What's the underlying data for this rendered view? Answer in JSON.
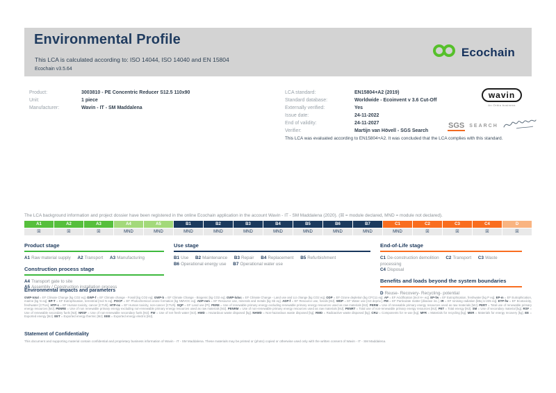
{
  "header": {
    "title": "Environmental Profile",
    "subtitle": "This LCA is calculated according to: ISO 14044, ISO 14040 and EN 15804",
    "version": "Ecochain v3.5.64",
    "logo_word": "Ecochain"
  },
  "product_info": {
    "rows": [
      {
        "label": "Product:",
        "value": "3003810 - PE Concentric Reducer S12.5 110x90"
      },
      {
        "label": "Unit:",
        "value": "1 piece"
      },
      {
        "label": "Manufacturer:",
        "value": "Wavin - IT - SM Maddalena"
      }
    ]
  },
  "lca_info": {
    "rows": [
      {
        "label": "LCA standard:",
        "value": "EN15804+A2 (2019)"
      },
      {
        "label": "Standard database:",
        "value": "Worldwide - Ecoinvent v 3.6 Cut-Off"
      },
      {
        "label": "Externally verified:",
        "value": "Yes"
      },
      {
        "label": "Issue date:",
        "value": "24-11-2022"
      },
      {
        "label": "End of validity:",
        "value": "24-11-2027"
      },
      {
        "label": "Verifier:",
        "value": "Martijn van Hövell - SGS Search"
      }
    ],
    "evaluation_note": "This LCA was evaluated according to EN15804+A2. It was concluded that the LCA complies with this standard."
  },
  "logos": {
    "wavin_word": "wavin",
    "wavin_tagline": "An Orbia business",
    "sgs_word": "SGS",
    "sgs_search_word": "SEARCH"
  },
  "registration_note": "The LCA background information and project dossier have been registered in the online Ecochain application in the account Wavin - IT - SM Maddalena (2020). (☒ = module declared, MND = module not declared).",
  "modules": {
    "columns": [
      {
        "code": "A1",
        "status": "☒"
      },
      {
        "code": "A2",
        "status": "☒"
      },
      {
        "code": "A3",
        "status": "☒"
      },
      {
        "code": "A4",
        "status": "MND"
      },
      {
        "code": "A5",
        "status": "MND"
      },
      {
        "code": "B1",
        "status": "MND"
      },
      {
        "code": "B2",
        "status": "MND"
      },
      {
        "code": "B3",
        "status": "MND"
      },
      {
        "code": "B4",
        "status": "MND"
      },
      {
        "code": "B5",
        "status": "MND"
      },
      {
        "code": "B6",
        "status": "MND"
      },
      {
        "code": "B7",
        "status": "MND"
      },
      {
        "code": "C1",
        "status": "MND"
      },
      {
        "code": "C2",
        "status": "☒"
      },
      {
        "code": "C3",
        "status": "☒"
      },
      {
        "code": "C4",
        "status": "☒"
      },
      {
        "code": "D",
        "status": "☒"
      }
    ]
  },
  "stages": {
    "product": {
      "heading": "Product stage",
      "items": [
        {
          "code": "A1",
          "label": "Raw material supply"
        },
        {
          "code": "A2",
          "label": "Transport"
        },
        {
          "code": "A3",
          "label": "Manufacturing"
        }
      ]
    },
    "construction": {
      "heading": "Construction process stage",
      "items": [
        {
          "code": "A4",
          "label": "Transport gate to site"
        },
        {
          "code": "A5",
          "label": "Assembly / Construction installation process"
        }
      ]
    },
    "use": {
      "heading": "Use stage",
      "items": [
        {
          "code": "B1",
          "label": "Use"
        },
        {
          "code": "B2",
          "label": "Maintenance"
        },
        {
          "code": "B3",
          "label": "Repair"
        },
        {
          "code": "B4",
          "label": "Replacement"
        },
        {
          "code": "B5",
          "label": "Refurbishment"
        },
        {
          "code": "B6",
          "label": "Operational energy use"
        },
        {
          "code": "B7",
          "label": "Operational water use"
        }
      ]
    },
    "eol": {
      "heading": "End-of-Life stage",
      "items": [
        {
          "code": "C1",
          "label": "De-construction demolition"
        },
        {
          "code": "C2",
          "label": "Transport"
        },
        {
          "code": "C3",
          "label": "Waste processing"
        },
        {
          "code": "C4",
          "label": "Disposal"
        }
      ]
    },
    "benefits": {
      "heading": "Benefits and loads beyond the system boundaries",
      "items": [
        {
          "code": "D",
          "label": "Reuse- Recovery- Recycling- potential"
        }
      ]
    }
  },
  "impacts": {
    "heading": "Environmental impacts and parameters",
    "text": "GWP-total = EF Climate Change [kg CO2 eq]. GWP-f = EF Climate change - Fossil [kg CO2 eq]. GWP-b = EF Climate Change - Biogenic [kg CO2 eq]. GWP-luluc = EF Climate Change - Land use and LU change [kg CO2 eq]. ODP = EF Ozone depletion [kg CFC11 eq]. AP = EF Acidification [mol H+ eq]. EP-fw = EF Eutrophication, freshwater [kg P eq]. EP-m = EF Eutrophication, marine [kg N eq]. EP-T = EF Eutrophication, terrestrial [mol N eq]. POCP = EF Photochemical ozone formation [kg NMVOC eq]. ADP-mm = EF Resource use, minerals and metals [kg Sb eq]. ADP-f = EF Resource use, fossils [MJ]. WDP = EF Water use [m3 depriv.]. PM = EF Particulate matter [disease inc.]. IR = EF Ionising radiation [kBq U-235 eq]. ETP-fw = EF Ecotoxicity, freshwater [CTUe]. HTP-c = EF Human toxicity, cancer [CTUh]. HTP-nc = EF Human toxicity, non-cancer [CTUh]. SQP = EF Land use [Pt]. PERE = Use of renewable primary energy excluding renewable primary energy resources used as raw materials [MJ]. PERM = Use of renewable primary energy resources used as raw materials [MJ]. PERT = Total use of renewable primary energy resources [MJ]. PENRE = Use of non renewable primary energy excluding non-renewable primary energy resources used as raw materials [MJ]. PENRM = Use of non-renewable primary energy resources used as raw materials [MJ]. PENRT = Total use of non-renewable primary energy resources [MJ]. PET = Total energy [MJ]. SM = Use of secondary material [kg]. RSF = Use of renewable secondary fuels [MJ]. NRSF = Use of non-renewable secondary fuels [MJ]. FW = Use of net fresh water [m3]. HWD = Hazardous waste disposed [kg]. NHWD = Non-hazardous waste disposed [kg]. RWD = Radioactive waste disposed [kg]. CRU = Components for re-use [kg]. MFR = Materials for recycling [kg]. MER = Materials for energy recovery [kg]. EE = Exported energy [MJ]. EET = Exported energy thermic [MJ]. EEE = Exported energy electric [MJ]."
  },
  "confidentiality": {
    "heading": "Statement of Confidentiality",
    "text": "This document and supporting material contain confidential and proprietary business information of Wavin - IT - SM Maddalena. These materials may be printed or (photo) copied or otherwise used only with the written consent of Wavin - IT - SM Maddalena."
  },
  "colors": {
    "navy": "#1b3a5e",
    "green": "#56bf3c",
    "light_green": "#a3d97a",
    "orange": "#f96d1f",
    "light_orange": "#f9b481",
    "band_gray": "#d3d3d3",
    "ecochain_green": "#56c02b"
  }
}
